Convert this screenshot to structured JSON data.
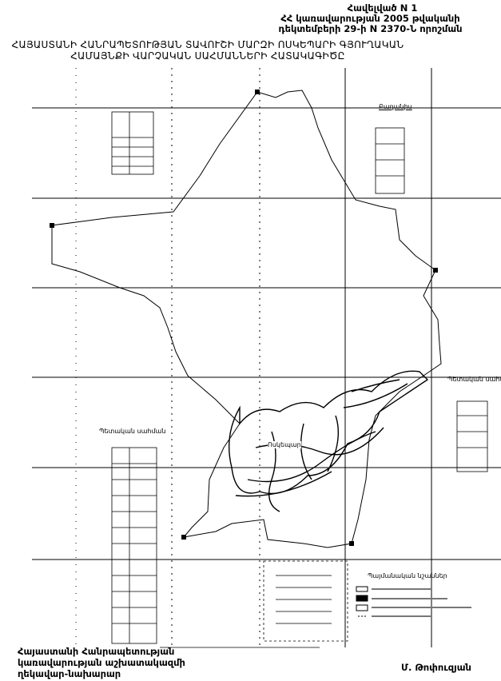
{
  "annex": {
    "line1": "Հավելված N 1",
    "line2": "ՀՀ կառավարության 2005 թվականի",
    "line3": "դեկտեմբերի 29-ի N 2370-Ն որոշման"
  },
  "title": {
    "line1": "ՀԱՅԱՍՏԱՆԻ ՀԱՆՐԱՊԵՏՈՒԹՅԱՆ ՏԱՎՈՒՇԻ ՄԱՐԶԻ ՈՍԿԵՊԱՐԻ ԳՅՈՒՂԱԿԱՆ",
    "line2": "ՀԱՄԱՅՆՔԻ ՎԱՐՉԱԿԱՆ ՍԱՀՄԱՆՆԵՐԻ ՀԱՏԱԿԱԳԻԾԸ"
  },
  "map": {
    "neighbor_label": "Բաղանիս",
    "state_border_left": "Պետական սահման",
    "state_border_right": "Պետական սահման",
    "village_label": "Ոսկեպար",
    "legend_title": "Պայմանական նշաններ",
    "boundary_color": "#000000"
  },
  "footer": {
    "position_line1": "Հայաստանի Հանրապետության",
    "position_line2": "կառավարության աշխատակազմի",
    "position_line3": "ղեկավար-նախարար",
    "signatory": "Մ. Թոփուզյան"
  }
}
